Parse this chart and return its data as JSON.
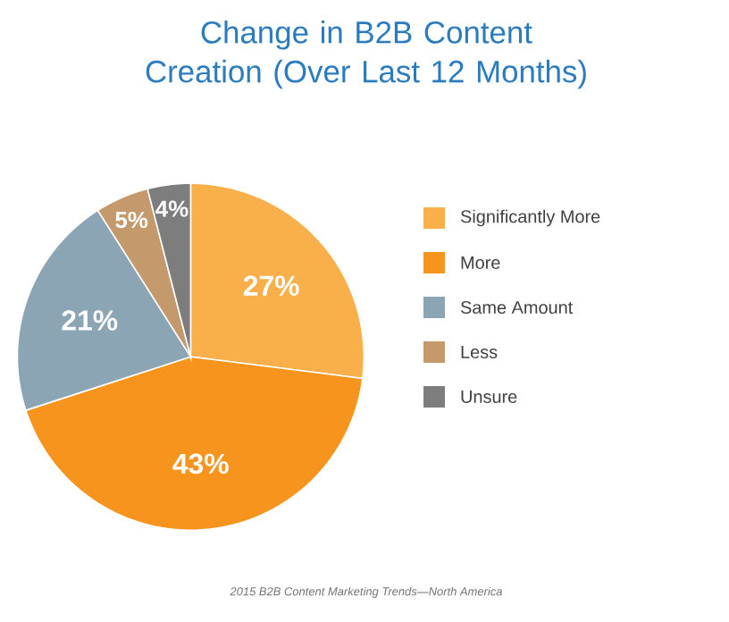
{
  "chart_data": {
    "type": "pie",
    "title": "Change in B2B Content Creation (Over Last 12 Months)",
    "categories": [
      "Significantly More",
      "More",
      "Same Amount",
      "Less",
      "Unsure"
    ],
    "values": [
      27,
      43,
      21,
      5,
      4
    ],
    "colors": [
      "#f9b04a",
      "#f7941d",
      "#8ca5b5",
      "#c49a6c",
      "#7d7d7d"
    ],
    "value_labels": [
      "27%",
      "43%",
      "21%",
      "5%",
      "4%"
    ],
    "legend": "right",
    "annotations": [
      "2015 B2B Content Marketing Trends—North America"
    ]
  }
}
